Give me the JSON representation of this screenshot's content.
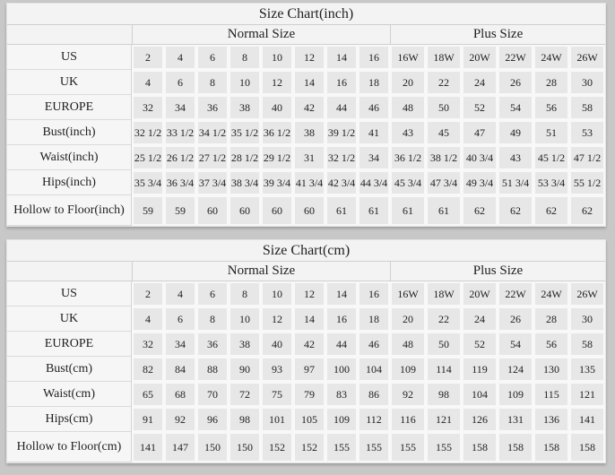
{
  "colors": {
    "page_bg": "#c8c8c8",
    "panel_bg": "#f3f3f3",
    "label_bg": "#f6f6f6",
    "cell_bg": "#e7e7e7",
    "text": "#1f1f1f"
  },
  "chart_data": [
    {
      "type": "table",
      "title": "Size Chart(inch)",
      "column_groups": [
        {
          "label": "Normal Size",
          "span": 8
        },
        {
          "label": "Plus Size",
          "span": 6
        }
      ],
      "rows": [
        {
          "label": "US",
          "normal": [
            "2",
            "4",
            "6",
            "8",
            "10",
            "12",
            "14",
            "16"
          ],
          "plus": [
            "16W",
            "18W",
            "20W",
            "22W",
            "24W",
            "26W"
          ]
        },
        {
          "label": "UK",
          "normal": [
            "4",
            "6",
            "8",
            "10",
            "12",
            "14",
            "16",
            "18"
          ],
          "plus": [
            "20",
            "22",
            "24",
            "26",
            "28",
            "30"
          ]
        },
        {
          "label": "EUROPE",
          "normal": [
            "32",
            "34",
            "36",
            "38",
            "40",
            "42",
            "44",
            "46"
          ],
          "plus": [
            "48",
            "50",
            "52",
            "54",
            "56",
            "58"
          ]
        },
        {
          "label": "Bust(inch)",
          "normal": [
            "32 1/2",
            "33 1/2",
            "34 1/2",
            "35 1/2",
            "36 1/2",
            "38",
            "39 1/2",
            "41"
          ],
          "plus": [
            "43",
            "45",
            "47",
            "49",
            "51",
            "53"
          ]
        },
        {
          "label": "Waist(inch)",
          "normal": [
            "25 1/2",
            "26 1/2",
            "27 1/2",
            "28 1/2",
            "29 1/2",
            "31",
            "32 1/2",
            "34"
          ],
          "plus": [
            "36 1/2",
            "38 1/2",
            "40 3/4",
            "43",
            "45 1/2",
            "47 1/2"
          ]
        },
        {
          "label": "Hips(inch)",
          "normal": [
            "35 3/4",
            "36 3/4",
            "37 3/4",
            "38 3/4",
            "39 3/4",
            "41 3/4",
            "42 3/4",
            "44 3/4"
          ],
          "plus": [
            "45 3/4",
            "47 3/4",
            "49 3/4",
            "51 3/4",
            "53 3/4",
            "55 1/2"
          ]
        },
        {
          "label": "Hollow to Floor(inch)",
          "normal": [
            "59",
            "59",
            "60",
            "60",
            "60",
            "60",
            "61",
            "61"
          ],
          "plus": [
            "61",
            "61",
            "62",
            "62",
            "62",
            "62"
          ]
        }
      ]
    },
    {
      "type": "table",
      "title": "Size Chart(cm)",
      "column_groups": [
        {
          "label": "Normal Size",
          "span": 8
        },
        {
          "label": "Plus Size",
          "span": 6
        }
      ],
      "rows": [
        {
          "label": "US",
          "normal": [
            "2",
            "4",
            "6",
            "8",
            "10",
            "12",
            "14",
            "16"
          ],
          "plus": [
            "16W",
            "18W",
            "20W",
            "22W",
            "24W",
            "26W"
          ]
        },
        {
          "label": "UK",
          "normal": [
            "4",
            "6",
            "8",
            "10",
            "12",
            "14",
            "16",
            "18"
          ],
          "plus": [
            "20",
            "22",
            "24",
            "26",
            "28",
            "30"
          ]
        },
        {
          "label": "EUROPE",
          "normal": [
            "32",
            "34",
            "36",
            "38",
            "40",
            "42",
            "44",
            "46"
          ],
          "plus": [
            "48",
            "50",
            "52",
            "54",
            "56",
            "58"
          ]
        },
        {
          "label": "Bust(cm)",
          "normal": [
            "82",
            "84",
            "88",
            "90",
            "93",
            "97",
            "100",
            "104"
          ],
          "plus": [
            "109",
            "114",
            "119",
            "124",
            "130",
            "135"
          ]
        },
        {
          "label": "Waist(cm)",
          "normal": [
            "65",
            "68",
            "70",
            "72",
            "75",
            "79",
            "83",
            "86"
          ],
          "plus": [
            "92",
            "98",
            "104",
            "109",
            "115",
            "121"
          ]
        },
        {
          "label": "Hips(cm)",
          "normal": [
            "91",
            "92",
            "96",
            "98",
            "101",
            "105",
            "109",
            "112"
          ],
          "plus": [
            "116",
            "121",
            "126",
            "131",
            "136",
            "141"
          ]
        },
        {
          "label": "Hollow to Floor(cm)",
          "normal": [
            "141",
            "147",
            "150",
            "150",
            "152",
            "152",
            "155",
            "155"
          ],
          "plus": [
            "155",
            "155",
            "158",
            "158",
            "158",
            "158"
          ]
        }
      ]
    }
  ]
}
